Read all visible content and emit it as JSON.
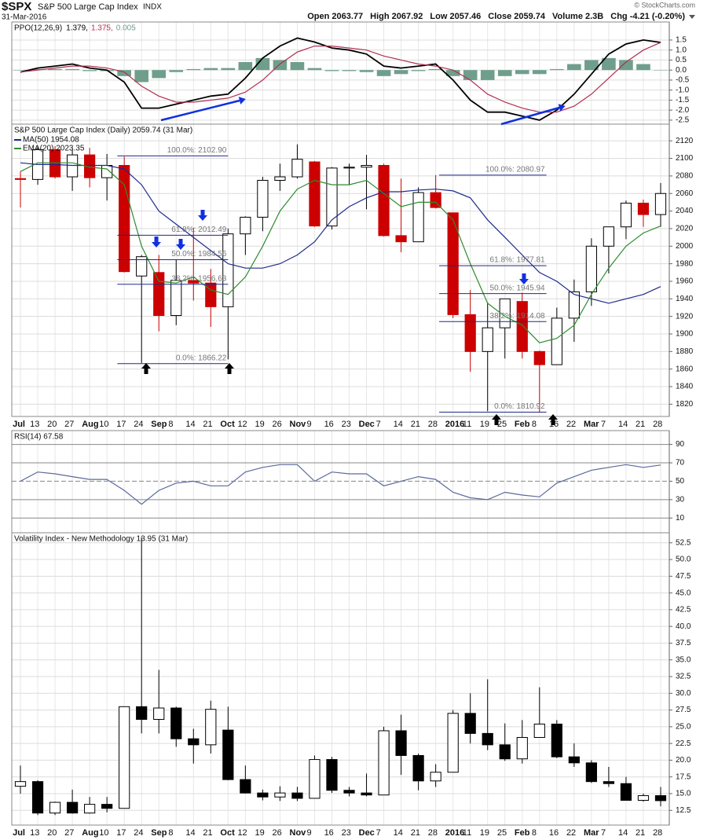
{
  "header": {
    "symbol": "$SPX",
    "name": "S&P 500 Large Cap Index",
    "exchange": "INDX",
    "date": "31-Mar-2016",
    "source": "© StockCharts.com",
    "stats": [
      "Open 2063.77",
      "High 2067.92",
      "Low 2057.46",
      "Close 2059.74",
      "Volume 2.3B",
      "Chg -4.21 (-0.20%)"
    ]
  },
  "chart_data": [
    {
      "type": "line",
      "title": "PPO(12,26,9)",
      "ylim": [
        -2.7,
        2.4
      ],
      "yticks": [
        1.5,
        {
          "value": 1,
          "label": "1.0"
        },
        0.5,
        {
          "value": 0,
          "label": "0.0"
        },
        -0.5,
        {
          "value": -1,
          "label": "-1.0"
        },
        -1.5,
        {
          "value": -2,
          "label": "-2.0"
        },
        -2.5
      ],
      "grid": true,
      "series": [
        {
          "name": "1.379,",
          "color": "#000000",
          "type": "line",
          "values": [
            -0.1,
            0.1,
            0.2,
            0.3,
            0.1,
            0.0,
            -0.6,
            -1.9,
            -1.9,
            -1.7,
            -1.5,
            -1.3,
            -1.2,
            -0.4,
            0.6,
            1.2,
            1.6,
            1.4,
            1.1,
            1.0,
            0.8,
            0.2,
            0.1,
            0.2,
            0.3,
            -0.5,
            -1.5,
            -2.1,
            -2.1,
            -2.3,
            -2.5,
            -2.0,
            -1.2,
            -0.2,
            0.8,
            1.3,
            1.5,
            1.379
          ]
        },
        {
          "name": "1.375,",
          "color": "#b03050",
          "type": "line",
          "values": [
            -0.1,
            0.0,
            0.1,
            0.2,
            0.2,
            0.1,
            -0.1,
            -0.8,
            -1.3,
            -1.6,
            -1.6,
            -1.5,
            -1.4,
            -1.1,
            -0.5,
            0.3,
            0.9,
            1.2,
            1.2,
            1.1,
            1.0,
            0.7,
            0.5,
            0.3,
            0.2,
            0.0,
            -0.5,
            -1.2,
            -1.6,
            -1.9,
            -2.1,
            -2.1,
            -1.8,
            -1.2,
            -0.4,
            0.4,
            1.0,
            1.375
          ]
        },
        {
          "name": "0.005",
          "color": "#6f9f8c",
          "type": "bar",
          "values": [
            0,
            0.05,
            0.05,
            0.05,
            -0.05,
            -0.05,
            -0.3,
            -0.6,
            -0.4,
            -0.1,
            0.05,
            0.1,
            0.1,
            0.4,
            0.6,
            0.5,
            0.4,
            0.1,
            -0.05,
            -0.05,
            -0.1,
            -0.3,
            -0.2,
            -0.05,
            0.05,
            -0.3,
            -0.5,
            -0.5,
            -0.3,
            -0.2,
            -0.2,
            0.05,
            0.3,
            0.5,
            0.6,
            0.5,
            0.3,
            0.005
          ]
        }
      ]
    },
    {
      "type": "candlestick",
      "title": "S&P 500 Large Cap Index (Daily) 2059.74 (31 Mar)",
      "categories": [
        "Jul",
        "13",
        "20",
        "27",
        "Aug",
        "10",
        "17",
        "24",
        "Sep",
        "8",
        "14",
        "21",
        "Oct",
        "12",
        "19",
        "26",
        "Nov",
        "9",
        "16",
        "23",
        "Dec",
        "7",
        "14",
        "21",
        "28",
        "2016",
        "11",
        "19",
        "25",
        "Feb",
        "8",
        "16",
        "22",
        "Mar",
        "7",
        "14",
        "21",
        "28"
      ],
      "open": [
        2077,
        2076,
        2110,
        2079,
        2104,
        2078,
        2092,
        1966,
        1970,
        1921,
        1961,
        1958,
        1931,
        2014,
        2033,
        2075,
        2079,
        2096,
        2023,
        2089,
        2090,
        2092,
        2012,
        2005,
        2061,
        2038,
        1922,
        1880,
        1907,
        1937,
        1880,
        1865,
        1918,
        1948,
        2000,
        2022,
        2049,
        2036
      ],
      "high": [
        2085,
        2114,
        2114,
        2110,
        2112,
        2105,
        2102,
        1990,
        1990,
        1985,
        2021,
        1974,
        2020,
        2034,
        2079,
        2094,
        2116,
        2097,
        2090,
        2094,
        2104,
        2094,
        2077,
        2067,
        2081,
        2038,
        1950,
        1935,
        1940,
        1947,
        1881,
        1930,
        1962,
        2009,
        2022,
        2052,
        2053,
        2072
      ],
      "low": [
        2044,
        2070,
        2077,
        2063,
        2067,
        2052,
        1970,
        1867,
        1903,
        1910,
        1938,
        1908,
        1871,
        1990,
        2017,
        2063,
        2077,
        2022,
        2019,
        2070,
        2042,
        2011,
        1993,
        2005,
        2043,
        1918,
        1857,
        1812,
        1872,
        1872,
        1811,
        1865,
        1891,
        1932,
        1969,
        2008,
        2022,
        2022
      ],
      "close": [
        2076,
        2110,
        2079,
        2104,
        2078,
        2092,
        1971,
        1988,
        1921,
        1961,
        1958,
        1931,
        2014,
        2033,
        2075,
        2079,
        2099,
        2023,
        2089,
        2090,
        2092,
        2012,
        2005,
        2061,
        2044,
        1922,
        1880,
        1907,
        1940,
        1880,
        1865,
        1918,
        1948,
        2000,
        2022,
        2049,
        2036,
        2060
      ],
      "up_color": "#000000",
      "down_color": "#cc0000",
      "ylim": [
        1806,
        2139
      ],
      "yticks": [
        1820,
        1840,
        1860,
        1880,
        1900,
        1920,
        1940,
        1960,
        1980,
        2000,
        2020,
        2040,
        2060,
        2080,
        2100,
        2120
      ],
      "grid": true,
      "series": [
        {
          "name": "MA(50) 1954.08",
          "color": "#1f2a8a",
          "type": "line",
          "values": [
            2095,
            2093,
            2093,
            2092,
            2092,
            2092,
            2088,
            2070,
            2040,
            2025,
            2010,
            1995,
            1980,
            1975,
            1975,
            1980,
            1990,
            2005,
            2030,
            2045,
            2055,
            2062,
            2062,
            2064,
            2065,
            2063,
            2055,
            2030,
            2010,
            1990,
            1970,
            1960,
            1945,
            1940,
            1935,
            1940,
            1945,
            1954
          ]
        },
        {
          "name": "EMA(20) 2023.35",
          "color": "#2e8b2e",
          "type": "line",
          "values": [
            2085,
            2095,
            2095,
            2095,
            2090,
            2088,
            2070,
            2000,
            1960,
            1958,
            1965,
            1950,
            1945,
            1965,
            2000,
            2040,
            2065,
            2075,
            2070,
            2070,
            2075,
            2060,
            2045,
            2050,
            2050,
            2030,
            1980,
            1935,
            1920,
            1910,
            1890,
            1895,
            1910,
            1945,
            1975,
            2000,
            2015,
            2023
          ]
        }
      ],
      "annotations": [
        {
          "text": "100.0%: 2102.90",
          "value": 2102.9
        },
        {
          "text": "61.8%: 2012.49",
          "value": 2012.49
        },
        {
          "text": "50.0%: 1984.56",
          "value": 1984.56
        },
        {
          "text": "38.2%: 1956.63",
          "value": 1956.63
        },
        {
          "text": "0.0%: 1866.22",
          "value": 1866.22
        },
        {
          "text": "100.0%: 2080.97",
          "value": 2080.97
        },
        {
          "text": "61.8%: 1977.81",
          "value": 1977.81
        },
        {
          "text": "50.0%: 1945.94",
          "value": 1945.94
        },
        {
          "text": "38.2%: 1914.08",
          "value": 1914.08
        },
        {
          "text": "0.0%: 1810.92",
          "value": 1810.92
        }
      ]
    },
    {
      "type": "line",
      "title": "RSI(14) 67.58",
      "ylim": [
        -6,
        105
      ],
      "yticks": [
        10,
        30,
        50,
        70,
        90
      ],
      "grid": true,
      "series": [
        {
          "name": "",
          "color": "#5a6a9a",
          "type": "line",
          "values": [
            50,
            60,
            58,
            55,
            52,
            52,
            40,
            25,
            40,
            48,
            50,
            45,
            45,
            60,
            65,
            68,
            68,
            50,
            60,
            58,
            58,
            45,
            50,
            55,
            52,
            38,
            32,
            30,
            38,
            35,
            33,
            48,
            55,
            62,
            65,
            68,
            65,
            67.58
          ]
        }
      ]
    },
    {
      "type": "candlestick",
      "title": "Volatility Index - New Methodology 13.95 (31 Mar)",
      "categories": [
        "Jul",
        "13",
        "20",
        "27",
        "Aug",
        "10",
        "17",
        "24",
        "Sep",
        "8",
        "14",
        "21",
        "Oct",
        "12",
        "19",
        "26",
        "Nov",
        "9",
        "16",
        "23",
        "Dec",
        "7",
        "14",
        "21",
        "28",
        "2016",
        "11",
        "19",
        "25",
        "Feb",
        "8",
        "16",
        "22",
        "Mar",
        "7",
        "14",
        "21",
        "28"
      ],
      "open": [
        16.1,
        16.8,
        12.1,
        13.7,
        12.1,
        13.4,
        12.8,
        28.0,
        26.1,
        27.8,
        23.2,
        22.3,
        24.5,
        17.1,
        15.1,
        14.5,
        15.1,
        14.3,
        20.1,
        15.5,
        15.1,
        14.8,
        24.4,
        20.7,
        16.9,
        18.2,
        27.0,
        24.0,
        22.3,
        20.2,
        23.4,
        25.4,
        20.5,
        19.6,
        16.8,
        16.5,
        14.0,
        14.7
      ],
      "high": [
        19.2,
        17.0,
        13.8,
        15.6,
        14.5,
        14.5,
        28.0,
        53.3,
        33.5,
        28.0,
        24.7,
        28.9,
        28.0,
        19.2,
        15.6,
        16.1,
        16.0,
        20.7,
        20.5,
        16.0,
        18.0,
        25.0,
        26.8,
        21.0,
        19.4,
        27.5,
        30.0,
        32.1,
        25.5,
        26.0,
        30.9,
        26.0,
        22.5,
        20.0,
        19.0,
        17.5,
        15.0,
        16.0
      ],
      "low": [
        15.0,
        11.8,
        11.8,
        12.0,
        12.0,
        12.2,
        12.8,
        24.0,
        24.0,
        22.0,
        19.5,
        21.0,
        17.0,
        15.0,
        14.0,
        13.9,
        13.9,
        14.3,
        15.1,
        14.6,
        14.6,
        14.8,
        17.8,
        15.5,
        16.0,
        18.2,
        22.5,
        21.5,
        19.9,
        19.5,
        23.4,
        20.3,
        19.0,
        16.6,
        16.0,
        14.0,
        13.8,
        13.1
      ],
      "close": [
        16.8,
        12.1,
        13.7,
        12.1,
        13.4,
        12.8,
        28.0,
        26.1,
        27.8,
        23.2,
        22.3,
        27.6,
        17.1,
        15.1,
        14.5,
        15.1,
        14.3,
        20.1,
        15.5,
        15.1,
        14.8,
        24.4,
        20.7,
        16.9,
        18.2,
        27.0,
        24.0,
        22.3,
        20.2,
        23.4,
        25.4,
        20.5,
        19.6,
        16.8,
        16.5,
        14.0,
        14.7,
        13.95
      ],
      "up_color": "#000000",
      "down_color": "#000000",
      "ylim": [
        10.3,
        54
      ],
      "yticks": [
        12.5,
        {
          "value": 15,
          "label": "15.0"
        },
        17.5,
        {
          "value": 20,
          "label": "20.0"
        },
        22.5,
        {
          "value": 25,
          "label": "25.0"
        },
        27.5,
        {
          "value": 30,
          "label": "30.0"
        },
        32.5,
        {
          "value": 35,
          "label": "35.0"
        },
        37.5,
        {
          "value": 40,
          "label": "40.0"
        },
        42.5,
        {
          "value": 45,
          "label": "45.0"
        },
        47.5,
        {
          "value": 50,
          "label": "50.0"
        },
        52.5
      ],
      "grid": true
    }
  ]
}
